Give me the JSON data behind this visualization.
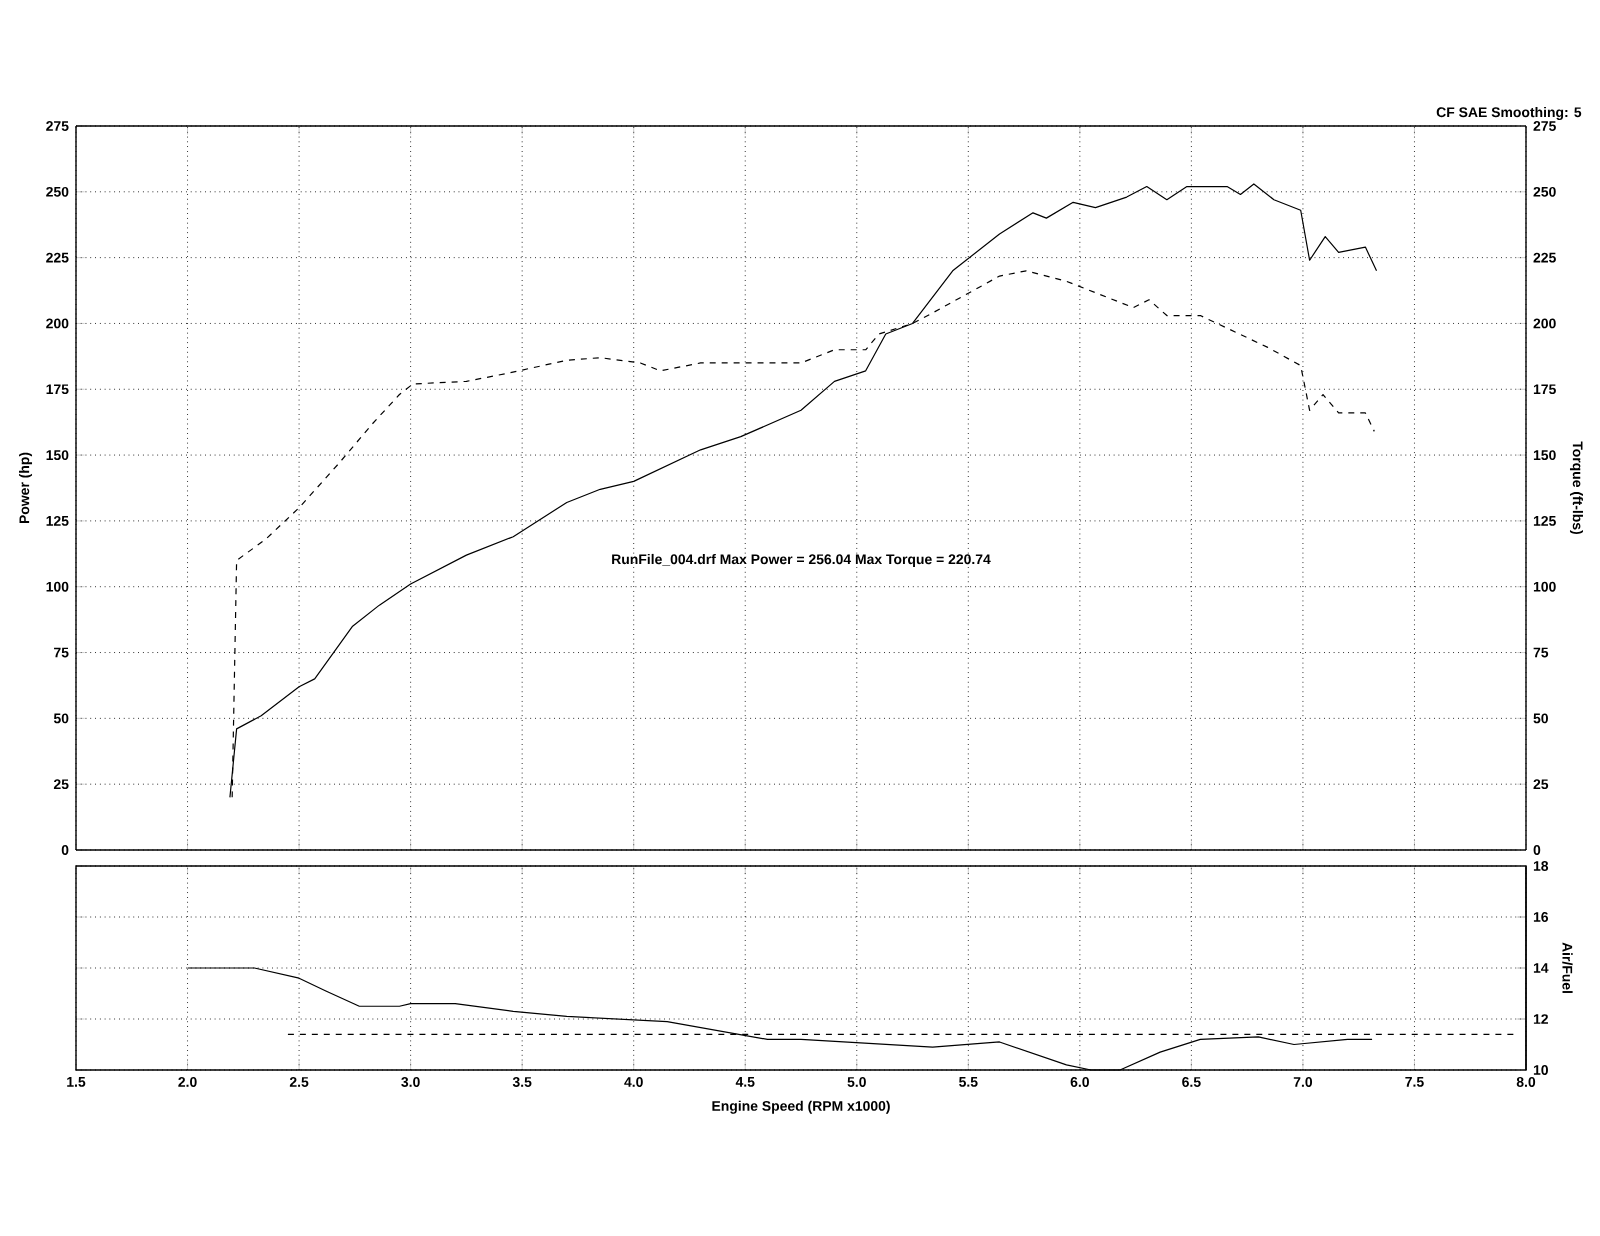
{
  "chart_data": [
    {
      "type": "line",
      "ylabel": "Power (hp)",
      "y2label": "Torque (ft-lbs)",
      "annotations": [
        "CF SAE Smoothing: 5",
        "RunFile_004.drf Max Power = 256.04    Max Torque = 220.74"
      ],
      "xlim": [
        1.5,
        8.0
      ],
      "xticks": [
        1.5,
        2,
        2.5,
        3,
        3.5,
        4,
        4.5,
        5,
        5.5,
        6,
        6.5,
        7,
        7.5,
        8
      ],
      "ylim": [
        0,
        275
      ],
      "yticks": [
        0,
        25,
        50,
        75,
        100,
        125,
        150,
        175,
        200,
        225,
        250,
        275
      ],
      "y2lim": [
        0,
        275
      ],
      "y2ticks": [
        0,
        25,
        50,
        75,
        100,
        125,
        150,
        175,
        200,
        225,
        250,
        275
      ],
      "tick_labels": "y",
      "grid": true,
      "series": [
        {
          "color": "#000000",
          "line_style": "solid",
          "x": [
            2.19,
            2.22,
            2.33,
            2.5,
            2.57,
            2.74,
            2.86,
            3.0,
            3.25,
            3.46,
            3.7,
            3.85,
            4.0,
            4.3,
            4.48,
            4.75,
            4.9,
            5.04,
            5.13,
            5.25,
            5.43,
            5.64,
            5.79,
            5.85,
            5.97,
            6.07,
            6.21,
            6.3,
            6.39,
            6.48,
            6.66,
            6.72,
            6.78,
            6.87,
            6.99,
            7.03,
            7.1,
            7.16,
            7.28,
            7.33
          ],
          "values": [
            20,
            46,
            51,
            62,
            65,
            85,
            93,
            101,
            112,
            119,
            132,
            137,
            140,
            152,
            157,
            167,
            178,
            182,
            196,
            200,
            220,
            234,
            242,
            240,
            246,
            244,
            248,
            252,
            247,
            252,
            252,
            249,
            253,
            247,
            243,
            224,
            233,
            227,
            229,
            220
          ]
        },
        {
          "color": "#000000",
          "line_style": "dashed",
          "axis": "y2",
          "x": [
            2.2,
            2.22,
            2.35,
            2.5,
            2.68,
            2.83,
            2.95,
            3.01,
            3.25,
            3.43,
            3.7,
            3.85,
            4.03,
            4.12,
            4.3,
            4.75,
            4.9,
            5.04,
            5.1,
            5.25,
            5.34,
            5.49,
            5.64,
            5.76,
            5.94,
            6.09,
            6.24,
            6.31,
            6.39,
            6.54,
            6.69,
            6.84,
            6.99,
            7.03,
            7.09,
            7.16,
            7.28,
            7.32
          ],
          "values": [
            20,
            110,
            118,
            130,
            147,
            162,
            173,
            177,
            178,
            181,
            186,
            187,
            185,
            182,
            185,
            185,
            190,
            190,
            196,
            200,
            204,
            211,
            218,
            220,
            216,
            211,
            206,
            209,
            203,
            203,
            197,
            191,
            184,
            167,
            173,
            166,
            166,
            159
          ]
        }
      ]
    },
    {
      "type": "line",
      "xlabel": "Engine Speed (RPM x1000)",
      "y2label": "Air/Fuel",
      "xlim": [
        1.5,
        8.0
      ],
      "xticks": [
        1.5,
        {
          "value": 2,
          "label": "2.0"
        },
        2.5,
        {
          "value": 3,
          "label": "3.0"
        },
        3.5,
        {
          "value": 4,
          "label": "4.0"
        },
        4.5,
        {
          "value": 5,
          "label": "5.0"
        },
        5.5,
        {
          "value": 6,
          "label": "6.0"
        },
        6.5,
        {
          "value": 7,
          "label": "7.0"
        },
        7.5,
        {
          "value": 8,
          "label": "8.0"
        }
      ],
      "y2lim": [
        10,
        18
      ],
      "y2ticks": [
        10,
        12,
        14,
        16,
        18
      ],
      "grid": true,
      "series": [
        {
          "color": "#000000",
          "line_style": "solid",
          "axis": "y2",
          "x": [
            2.0,
            2.3,
            2.5,
            2.62,
            2.77,
            2.95,
            3.0,
            3.2,
            3.46,
            3.7,
            4.15,
            4.6,
            4.75,
            5.34,
            5.64,
            5.94,
            6.05,
            6.18,
            6.36,
            6.54,
            6.8,
            6.96,
            7.2,
            7.31
          ],
          "values": [
            14.0,
            14.0,
            13.6,
            13.1,
            12.5,
            12.5,
            12.6,
            12.6,
            12.3,
            12.1,
            11.9,
            11.2,
            11.2,
            10.9,
            11.1,
            10.2,
            10.0,
            10.0,
            10.7,
            11.2,
            11.3,
            11.0,
            11.2,
            11.2
          ]
        },
        {
          "color": "#000000",
          "line_style": "dashed",
          "axis": "y2",
          "x": [
            2.45,
            4.4,
            6.5,
            7.95
          ],
          "values": [
            11.4,
            11.4,
            11.4,
            11.4
          ]
        }
      ]
    }
  ]
}
